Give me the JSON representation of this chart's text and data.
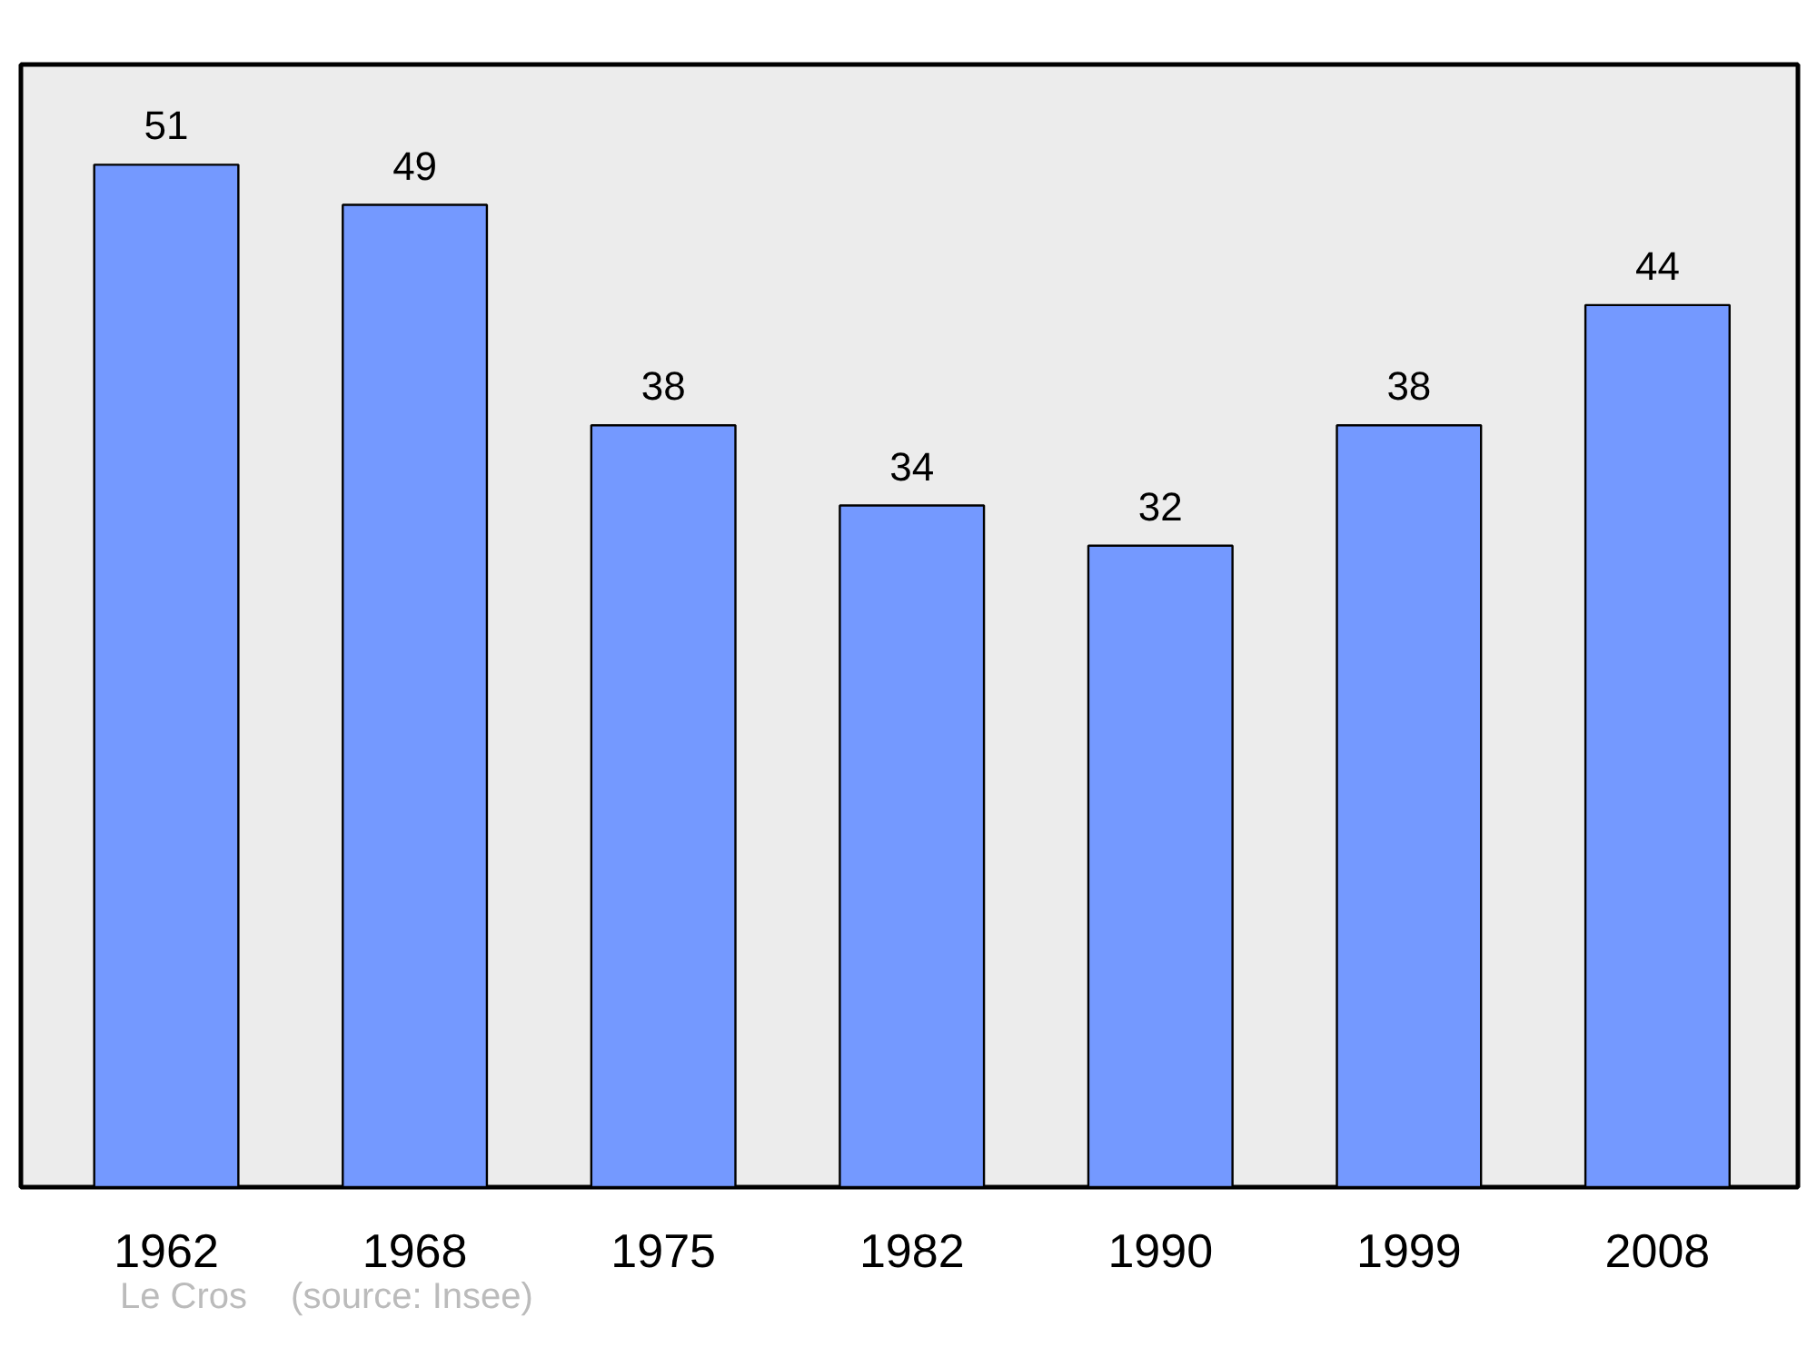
{
  "chart_data": {
    "type": "bar",
    "categories": [
      "1962",
      "1968",
      "1975",
      "1982",
      "1990",
      "1999",
      "2008"
    ],
    "values": [
      51,
      49,
      38,
      34,
      32,
      38,
      44
    ],
    "color": "#7499ff",
    "ylim": [
      0,
      56
    ],
    "data_labels": true,
    "grid": false,
    "tick_labels": "x",
    "annotations": [
      "Le Cros",
      "(source: Insee)"
    ]
  }
}
